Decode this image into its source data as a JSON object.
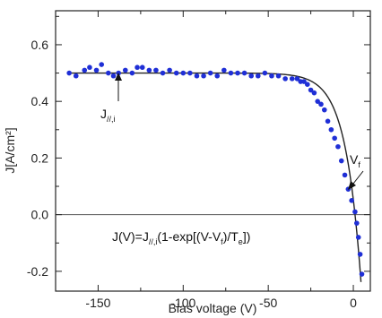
{
  "chart_data": {
    "type": "scatter",
    "xlabel": "Bias voltage (V)",
    "ylabel": "J[A/cm²]",
    "xlim": [
      -175,
      10
    ],
    "ylim": [
      -0.27,
      0.72
    ],
    "xticks": [
      -150,
      -100,
      -50,
      0
    ],
    "xtick_labels": [
      "-150",
      "-100",
      "-50",
      "0"
    ],
    "yticks": [
      -0.2,
      0.0,
      0.2,
      0.4,
      0.6
    ],
    "ytick_labels": [
      "-0.2",
      "0.0",
      "0.2",
      "0.4",
      "0.6"
    ],
    "grid": false,
    "series": [
      {
        "kind": "points",
        "color": "#1f2fd6",
        "x": [
          -167,
          -163,
          -158,
          -155,
          -151,
          -148,
          -144,
          -141,
          -138,
          -134,
          -130,
          -127,
          -124,
          -120,
          -116,
          -112,
          -108,
          -104,
          -100,
          -96,
          -92,
          -88,
          -84,
          -80,
          -76,
          -72,
          -68,
          -64,
          -60,
          -56,
          -52,
          -48,
          -44,
          -40,
          -36,
          -33,
          -31,
          -29,
          -27,
          -25,
          -23,
          -21,
          -19,
          -17,
          -15,
          -13,
          -11,
          -9,
          -7,
          -5,
          -3,
          -1,
          1,
          2,
          3,
          4,
          5
        ],
        "y": [
          0.5,
          0.49,
          0.51,
          0.52,
          0.51,
          0.53,
          0.5,
          0.49,
          0.5,
          0.51,
          0.5,
          0.52,
          0.52,
          0.51,
          0.51,
          0.5,
          0.51,
          0.5,
          0.5,
          0.5,
          0.49,
          0.49,
          0.5,
          0.49,
          0.51,
          0.5,
          0.5,
          0.5,
          0.49,
          0.49,
          0.5,
          0.49,
          0.49,
          0.48,
          0.48,
          0.48,
          0.47,
          0.47,
          0.46,
          0.44,
          0.43,
          0.4,
          0.39,
          0.37,
          0.33,
          0.3,
          0.27,
          0.24,
          0.19,
          0.14,
          0.09,
          0.05,
          0.01,
          -0.03,
          -0.08,
          -0.14,
          -0.21
        ]
      },
      {
        "kind": "fit-line",
        "color": "#222222",
        "formula_params": {
          "J_par": 0.5,
          "V_f": 1,
          "T_e": 9
        }
      }
    ],
    "annotations": {
      "j_label_main": "J",
      "j_label_sub": "//,i",
      "vf_label_main": "V",
      "vf_label_sub": "f",
      "formula_parts": [
        "J(V)=J",
        "//,i",
        "(1-exp[(V-V",
        "f",
        ")/T",
        "e",
        "])"
      ]
    }
  }
}
